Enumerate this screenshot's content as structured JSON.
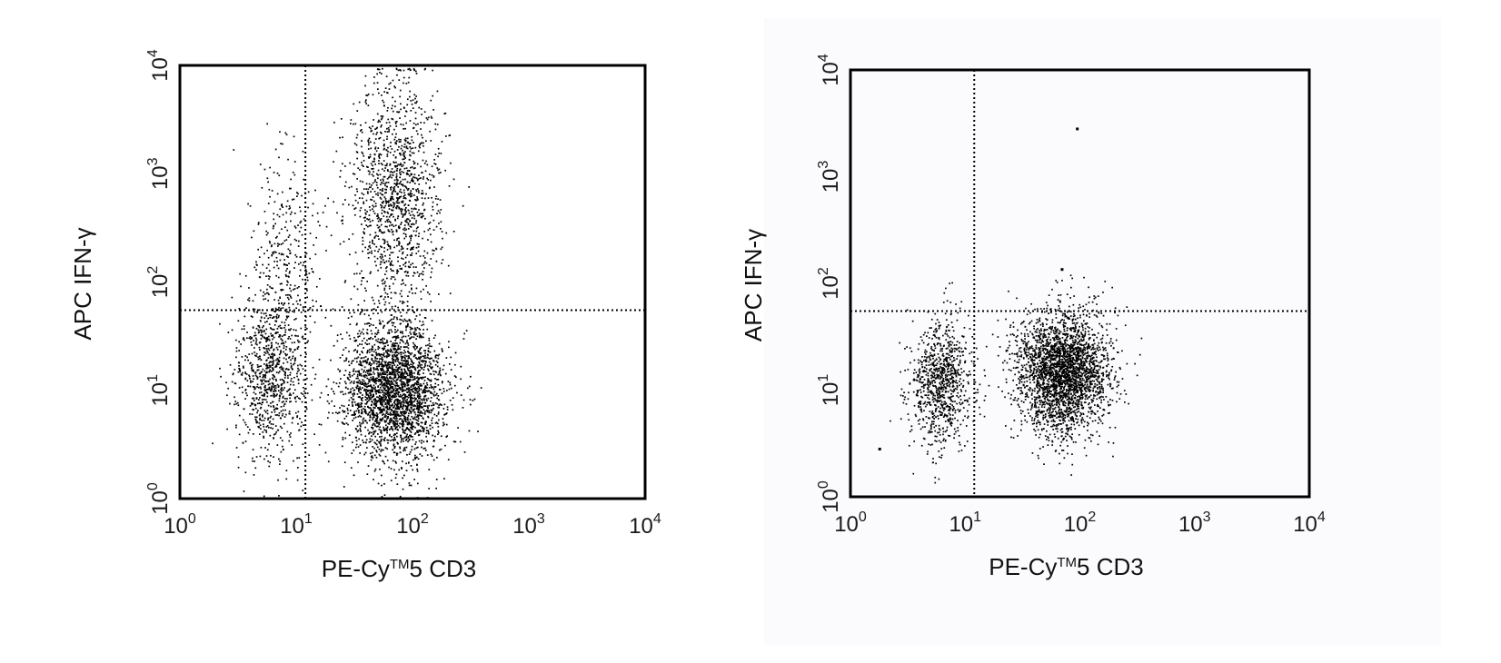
{
  "chart_data": [
    {
      "type": "scatter",
      "xlabel_main": "PE-Cy",
      "xlabel_sup": "TM",
      "xlabel_rest": "5 CD3",
      "ylabel": "APC IFN-γ",
      "xscale": "log",
      "yscale": "log",
      "xlim": [
        1,
        10000
      ],
      "ylim": [
        1,
        10000
      ],
      "xticks": [
        {
          "base": "10",
          "exp": "0"
        },
        {
          "base": "10",
          "exp": "1"
        },
        {
          "base": "10",
          "exp": "2"
        },
        {
          "base": "10",
          "exp": "3"
        },
        {
          "base": "10",
          "exp": "4"
        }
      ],
      "yticks": [
        {
          "base": "10",
          "exp": "0"
        },
        {
          "base": "10",
          "exp": "1"
        },
        {
          "base": "10",
          "exp": "2"
        },
        {
          "base": "10",
          "exp": "3"
        },
        {
          "base": "10",
          "exp": "4"
        }
      ],
      "quadrant_gate": {
        "x": 12,
        "y": 55
      },
      "populations": [
        {
          "x_center": 70,
          "y_center": 10,
          "log_sx": 0.22,
          "log_sy": 0.32,
          "count": 2600
        },
        {
          "x_center": 6,
          "y_center": 14,
          "log_sx": 0.16,
          "log_sy": 0.38,
          "count": 900
        },
        {
          "x_center": 70,
          "y_center": 600,
          "log_sx": 0.2,
          "log_sy": 0.55,
          "count": 1300
        },
        {
          "x_center": 8,
          "y_center": 180,
          "log_sx": 0.14,
          "log_sy": 0.5,
          "count": 300
        }
      ],
      "grid": false,
      "legend": "none"
    },
    {
      "type": "scatter",
      "xlabel_main": "PE-Cy",
      "xlabel_sup": "TM",
      "xlabel_rest": "5 CD3",
      "ylabel": "APC IFN-γ",
      "xscale": "log",
      "yscale": "log",
      "xlim": [
        1,
        10000
      ],
      "ylim": [
        1,
        10000
      ],
      "xticks": [
        {
          "base": "10",
          "exp": "0"
        },
        {
          "base": "10",
          "exp": "1"
        },
        {
          "base": "10",
          "exp": "2"
        },
        {
          "base": "10",
          "exp": "3"
        },
        {
          "base": "10",
          "exp": "4"
        }
      ],
      "yticks": [
        {
          "base": "10",
          "exp": "0"
        },
        {
          "base": "10",
          "exp": "1"
        },
        {
          "base": "10",
          "exp": "2"
        },
        {
          "base": "10",
          "exp": "3"
        },
        {
          "base": "10",
          "exp": "4"
        }
      ],
      "quadrant_gate": {
        "x": 12,
        "y": 55
      },
      "populations": [
        {
          "x_center": 70,
          "y_center": 15,
          "log_sx": 0.2,
          "log_sy": 0.28,
          "count": 2800
        },
        {
          "x_center": 6,
          "y_center": 12,
          "log_sx": 0.13,
          "log_sy": 0.3,
          "count": 900
        }
      ],
      "outliers": [
        {
          "x": 95,
          "y": 2800
        },
        {
          "x": 70,
          "y": 135
        },
        {
          "x": 1.8,
          "y": 2.8
        }
      ],
      "grid": false,
      "legend": "none"
    }
  ]
}
